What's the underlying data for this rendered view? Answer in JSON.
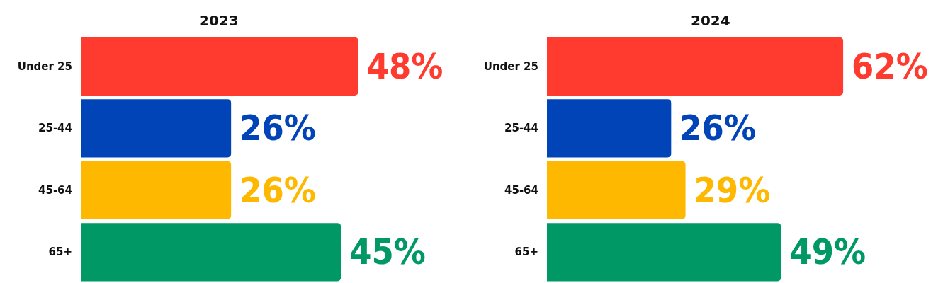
{
  "chart_data": [
    {
      "type": "bar",
      "title": "2023",
      "orientation": "horizontal",
      "tick_labels": "y",
      "categories": [
        "Under 25",
        "25-44",
        "45-64",
        "65+"
      ],
      "values": [
        48,
        26,
        26,
        45
      ],
      "value_labels": [
        "48%",
        "26%",
        "26%",
        "45%"
      ],
      "colors": [
        "#ff3b30",
        "#0044b8",
        "#ffb800",
        "#009966"
      ]
    },
    {
      "type": "bar",
      "title": "2024",
      "orientation": "horizontal",
      "tick_labels": "y",
      "categories": [
        "Under 25",
        "25-44",
        "45-64",
        "65+"
      ],
      "values": [
        62,
        26,
        29,
        49
      ],
      "value_labels": [
        "62%",
        "26%",
        "29%",
        "49%"
      ],
      "colors": [
        "#ff3b30",
        "#0044b8",
        "#ffb800",
        "#009966"
      ]
    }
  ]
}
